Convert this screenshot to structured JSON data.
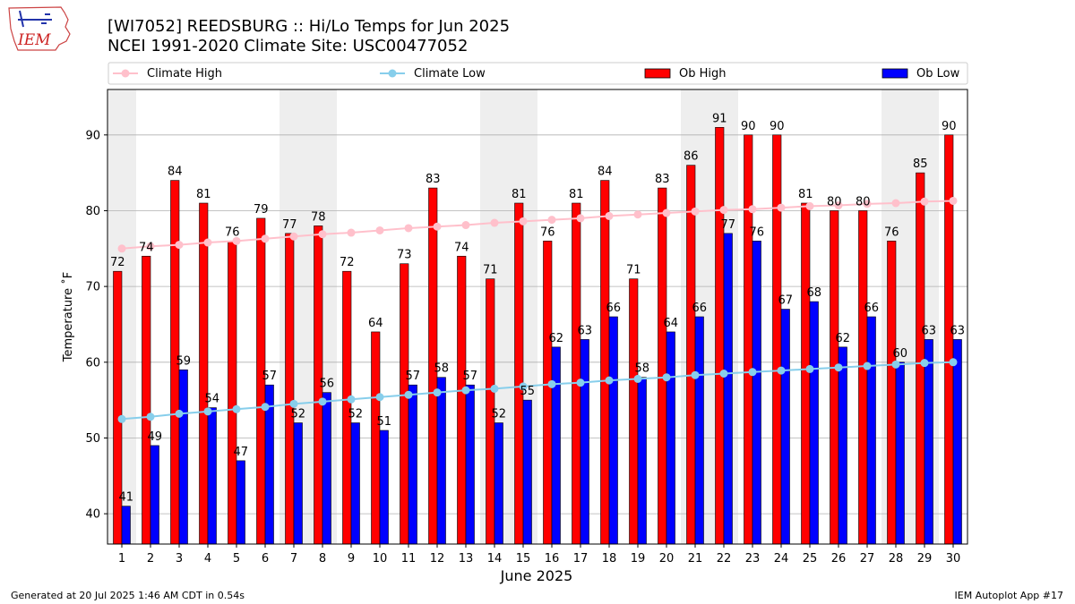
{
  "header": {
    "title_line1": "[WI7052] REEDSBURG :: Hi/Lo Temps for Jun 2025",
    "title_line2": "NCEI 1991-2020 Climate Site: USC00477052",
    "logo_text": "IEM"
  },
  "footer": {
    "generated": "Generated at 20 Jul 2025 1:46 AM CDT in 0.54s",
    "app": "IEM Autoplot App #17"
  },
  "colors": {
    "ob_high": "#ff0000",
    "ob_low": "#0000ff",
    "climate_high": "#ffc0cb",
    "climate_low": "#87ceeb",
    "weekend_shade": "#eeeeee",
    "grid": "#b0b0b0"
  },
  "chart_data": {
    "type": "bar",
    "xlabel": "June 2025",
    "ylabel": "Temperature ˚F",
    "ylim": [
      36,
      96
    ],
    "yticks": [
      40,
      50,
      60,
      70,
      80,
      90
    ],
    "grid": "horizontal",
    "legend_position": "top",
    "categories": [
      "1",
      "2",
      "3",
      "4",
      "5",
      "6",
      "7",
      "8",
      "9",
      "10",
      "11",
      "12",
      "13",
      "14",
      "15",
      "16",
      "17",
      "18",
      "19",
      "20",
      "21",
      "22",
      "23",
      "24",
      "25",
      "26",
      "27",
      "28",
      "29",
      "30"
    ],
    "shaded_days": [
      1,
      7,
      8,
      14,
      15,
      21,
      22,
      28,
      29
    ],
    "series": [
      {
        "name": "Ob High",
        "kind": "bar",
        "values": [
          72,
          74,
          84,
          81,
          76,
          79,
          77,
          78,
          72,
          64,
          73,
          83,
          74,
          71,
          81,
          76,
          81,
          84,
          71,
          83,
          86,
          91,
          90,
          90,
          81,
          80,
          80,
          76,
          85,
          90
        ]
      },
      {
        "name": "Ob Low",
        "kind": "bar",
        "values": [
          41,
          49,
          59,
          54,
          47,
          57,
          52,
          56,
          52,
          51,
          57,
          58,
          57,
          52,
          55,
          62,
          63,
          66,
          58,
          64,
          66,
          77,
          76,
          67,
          68,
          62,
          66,
          60,
          63,
          63
        ]
      },
      {
        "name": "Climate High",
        "kind": "line",
        "values": [
          75.0,
          75.3,
          75.5,
          75.8,
          76.0,
          76.3,
          76.6,
          76.9,
          77.1,
          77.4,
          77.7,
          77.9,
          78.1,
          78.4,
          78.6,
          78.8,
          79.0,
          79.3,
          79.5,
          79.7,
          79.9,
          80.1,
          80.2,
          80.4,
          80.6,
          80.7,
          80.9,
          81.0,
          81.2,
          81.3
        ]
      },
      {
        "name": "Climate Low",
        "kind": "line",
        "values": [
          52.5,
          52.8,
          53.2,
          53.5,
          53.8,
          54.1,
          54.5,
          54.8,
          55.1,
          55.4,
          55.7,
          56.0,
          56.3,
          56.5,
          56.8,
          57.1,
          57.3,
          57.6,
          57.8,
          58.0,
          58.3,
          58.5,
          58.7,
          58.9,
          59.1,
          59.3,
          59.5,
          59.7,
          59.9,
          60.0
        ]
      }
    ]
  }
}
